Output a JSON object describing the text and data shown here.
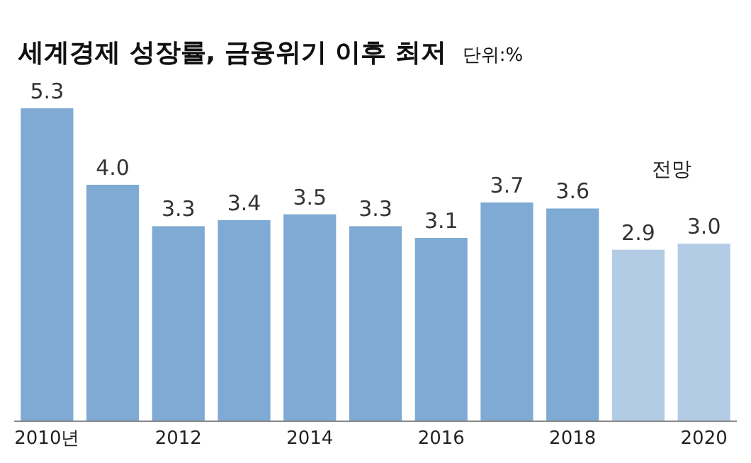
{
  "chart_data": {
    "type": "bar",
    "title": "세계경제 성장률, 금융위기 이후 최저",
    "subtitle": "단위:%",
    "categories": [
      "2010년",
      null,
      "2012",
      null,
      "2014",
      null,
      "2016",
      null,
      "2018",
      null,
      "2020"
    ],
    "values": [
      5.3,
      4.0,
      3.3,
      3.4,
      3.5,
      3.3,
      3.1,
      3.7,
      3.6,
      2.9,
      3.0
    ],
    "colors": [
      "#7eaad3",
      "#7eaad3",
      "#7eaad3",
      "#7eaad3",
      "#7eaad3",
      "#7eaad3",
      "#7eaad3",
      "#7eaad3",
      "#7eaad3",
      "#b2cce6",
      "#b2cce6"
    ],
    "value_labels": [
      "5.3",
      "4.0",
      "3.3",
      "3.4",
      "3.5",
      "3.3",
      "3.1",
      "3.7",
      "3.6",
      "2.9",
      "3.0"
    ],
    "annotations": [
      "전망"
    ]
  }
}
